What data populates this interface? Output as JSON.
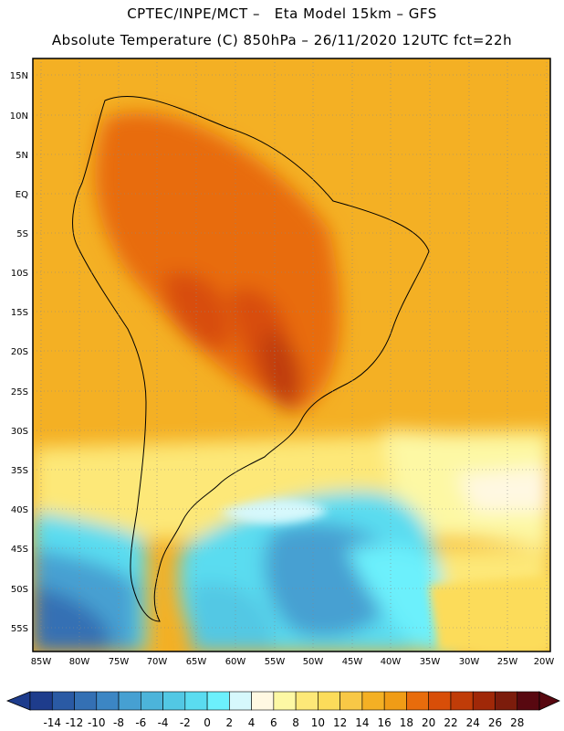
{
  "header": {
    "line1": "CPTEC/INPE/MCT –   Eta Model 15km – GFS",
    "line2": "Absolute Temperature (C) 850hPa – 26/11/2020 12UTC fct=22h"
  },
  "map": {
    "lat_labels": [
      "15N",
      "10N",
      "5N",
      "EQ",
      "5S",
      "10S",
      "15S",
      "20S",
      "25S",
      "30S",
      "35S",
      "40S",
      "45S",
      "50S",
      "55S"
    ],
    "lon_labels": [
      "85W",
      "80W",
      "75W",
      "70W",
      "65W",
      "60W",
      "55W",
      "50W",
      "45W",
      "40W",
      "35W",
      "30W",
      "25W",
      "20W"
    ],
    "grid": "dotted"
  },
  "colorbar": {
    "labels": [
      "-14",
      "-12",
      "-10",
      "-8",
      "-6",
      "-4",
      "-2",
      "0",
      "2",
      "4",
      "6",
      "8",
      "10",
      "12",
      "14",
      "16",
      "18",
      "20",
      "22",
      "24",
      "26",
      "28"
    ],
    "colors": [
      "#1e3c8c",
      "#2a5aa4",
      "#3470b4",
      "#3c86c4",
      "#46a0d2",
      "#4cb4da",
      "#52c8e4",
      "#5adcf0",
      "#6cf0fc",
      "#d6f8fc",
      "#fff8e2",
      "#fdf8a4",
      "#fde878",
      "#fcdc5a",
      "#f8c846",
      "#f4b024",
      "#f09c16",
      "#e86c0c",
      "#d84e08",
      "#c03c08",
      "#a02808",
      "#7c1c0c",
      "#580810"
    ]
  }
}
